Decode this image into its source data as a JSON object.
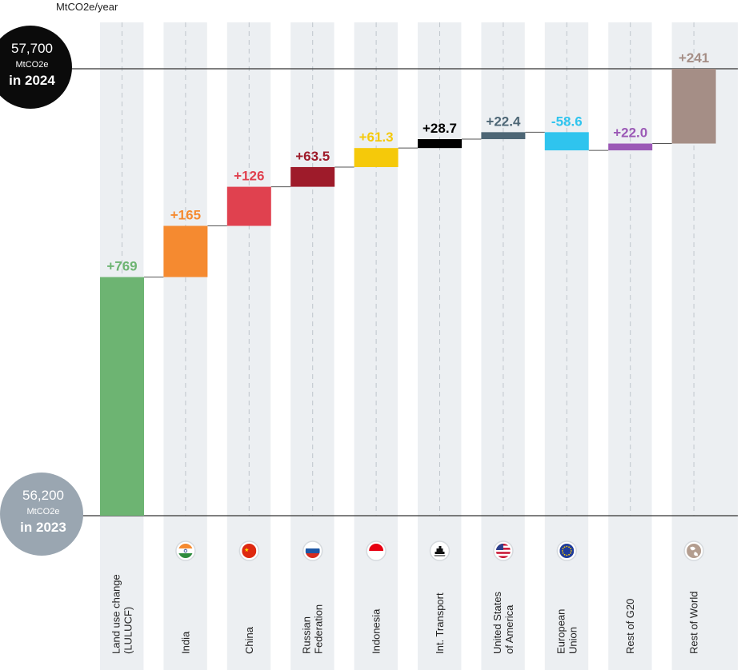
{
  "chart_data": {
    "type": "waterfall",
    "ylabel": "MtCO2e/year",
    "start": {
      "value_label": "56,200",
      "unit": "MtCO2e",
      "year_label": "in 2023"
    },
    "end": {
      "value_label": "57,700",
      "unit": "MtCO2e",
      "year_label": "in 2024"
    },
    "categories": [
      {
        "lines": [
          "Land use change",
          "(LULUCF)"
        ],
        "icon": "none",
        "delta": 769,
        "label": "+769",
        "color": "#6db472"
      },
      {
        "lines": [
          "India"
        ],
        "icon": "india-flag-icon",
        "delta": 165,
        "label": "+165",
        "color": "#f58a30"
      },
      {
        "lines": [
          "China"
        ],
        "icon": "china-flag-icon",
        "delta": 126,
        "label": "+126",
        "color": "#e0414f"
      },
      {
        "lines": [
          "Russian",
          "Federation"
        ],
        "icon": "russia-flag-icon",
        "delta": 63.5,
        "label": "+63.5",
        "color": "#9e1b2a"
      },
      {
        "lines": [
          "Indonesia"
        ],
        "icon": "indonesia-flag-icon",
        "delta": 61.3,
        "label": "+61.3",
        "color": "#f5c90a"
      },
      {
        "lines": [
          "Int. Transport"
        ],
        "icon": "ship-icon",
        "delta": 28.7,
        "label": "+28.7",
        "color": "#000000"
      },
      {
        "lines": [
          "United States",
          "of America"
        ],
        "icon": "usa-flag-icon",
        "delta": 22.4,
        "label": "+22.4",
        "color": "#4d6675"
      },
      {
        "lines": [
          "European",
          "Union"
        ],
        "icon": "eu-flag-icon",
        "delta": -58.6,
        "label": "-58.6",
        "color": "#2fc4ee"
      },
      {
        "lines": [
          "Rest of G20"
        ],
        "icon": "none",
        "delta": 22.0,
        "label": "+22.0",
        "color": "#9b59b6"
      },
      {
        "lines": [
          "Rest of World"
        ],
        "icon": "globe-icon",
        "delta": 241,
        "label": "+241",
        "color": "#a58e86"
      }
    ]
  }
}
